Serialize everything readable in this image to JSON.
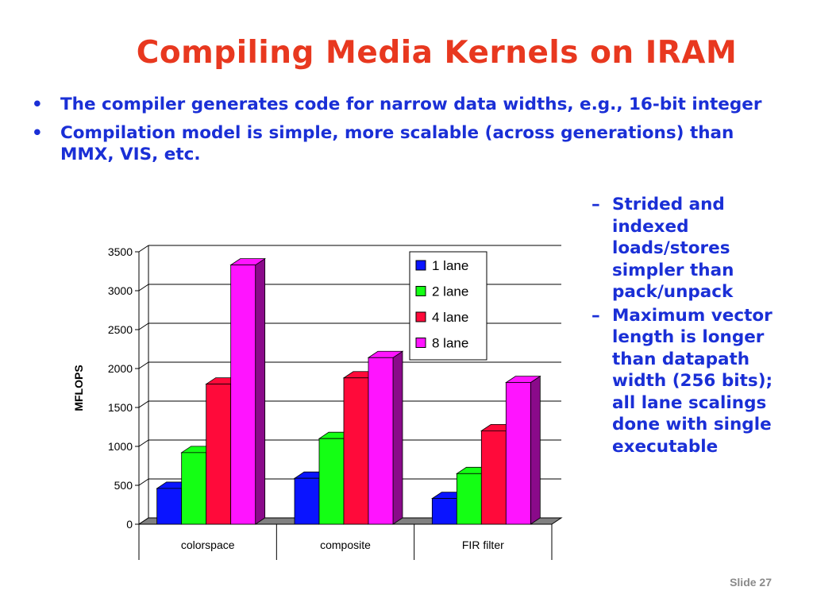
{
  "slide": {
    "title": "Compiling Media Kernels on IRAM",
    "bullets": [
      "The compiler generates code for narrow data widths, e.g., 16-bit integer",
      "Compilation model is simple, more scalable (across generations) than MMX, VIS, etc."
    ],
    "bullet_marker": "•",
    "subbullets": [
      "Strided and indexed loads/stores simpler than pack/unpack",
      "Maximum vector length is longer than datapath width (256 bits); all lane scalings done with single executable"
    ],
    "subbullet_marker": "–",
    "footer": "Slide 27"
  },
  "chart_data": {
    "type": "bar",
    "title": "",
    "xlabel": "",
    "ylabel": "MFLOPS",
    "categories": [
      "colorspace",
      "composite",
      "FIR filter"
    ],
    "ylim": [
      0,
      3500
    ],
    "yticks": [
      0,
      500,
      1000,
      1500,
      2000,
      2500,
      3000,
      3500
    ],
    "grid": true,
    "legend_position": "top-right",
    "style": "3d",
    "series": [
      {
        "name": "1 lane",
        "color": "#0a14ff",
        "dark": "#040a80",
        "values": [
          460,
          590,
          330
        ]
      },
      {
        "name": "2 lane",
        "color": "#14ff14",
        "dark": "#0a8a0a",
        "values": [
          920,
          1100,
          650
        ]
      },
      {
        "name": "4 lane",
        "color": "#ff0a3a",
        "dark": "#8a0520",
        "values": [
          1800,
          1880,
          1200
        ]
      },
      {
        "name": "8 lane",
        "color": "#ff14ff",
        "dark": "#8a0a8a",
        "values": [
          3330,
          2140,
          1820
        ]
      }
    ]
  }
}
